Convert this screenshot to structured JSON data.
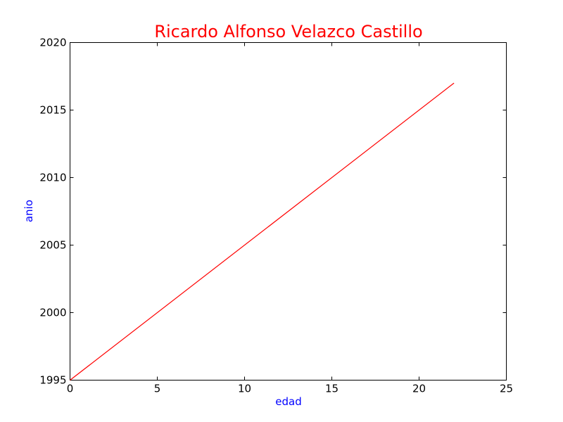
{
  "chart_data": {
    "type": "line",
    "title": "Ricardo Alfonso Velazco Castillo",
    "xlabel": "edad",
    "ylabel": "anio",
    "xlim": [
      0,
      25
    ],
    "ylim": [
      1995,
      2020
    ],
    "xticks": [
      "0",
      "5",
      "10",
      "15",
      "20",
      "25"
    ],
    "yticks": [
      "1995",
      "2000",
      "2005",
      "2010",
      "2015",
      "2020"
    ],
    "grid": false,
    "series": [
      {
        "x": [
          0,
          22
        ],
        "y": [
          1995,
          2017
        ],
        "color": "#ff0000"
      }
    ]
  },
  "colors": {
    "title": "#ff0000",
    "axis_labels": "#0000ff",
    "line": "#ff0000",
    "frame": "#000000"
  }
}
